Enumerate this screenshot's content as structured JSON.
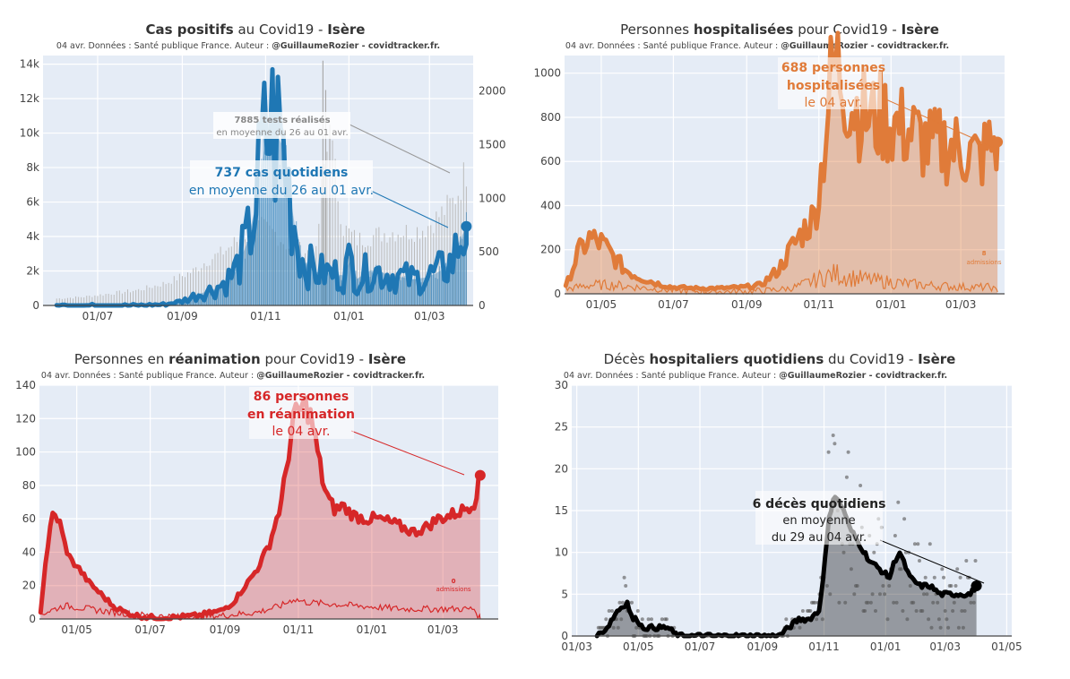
{
  "page": {
    "background": "#ffffff",
    "plot_background": "#e5ecf6"
  },
  "charts": [
    {
      "id": "cases",
      "title_pre": "Cas positifs",
      "title_mid": " au Covid19 - ",
      "title_post": "Isère",
      "subtitle": "04 avr. Données : Santé publique France. Auteur : ",
      "subtitle_author": "@GuillaumeRozier - covidtracker.fr.",
      "annotation_main": "737 cas quotidiens",
      "annotation_sub": "en moyenne du 26 au 01 avr.",
      "annotation2_main": "7885 tests réalisés",
      "annotation2_sub": "en moyenne du 26 au 01 avr.",
      "color": "#1f77b4"
    },
    {
      "id": "hosp",
      "title_pre": "Personnes ",
      "title_mid": "hospitalisées",
      "title_post": " pour Covid19 - ",
      "title_end": "Isère",
      "subtitle": "04 avr. Données : Santé publique France. Auteur : ",
      "subtitle_author": "@GuillaumeRozier - covidtracker.fr.",
      "annotation_line1": "688 personnes",
      "annotation_line2": "hospitalisées",
      "annotation_sub": "le 04 avr.",
      "small_note_value": "8",
      "small_note_label": "admissions",
      "color": "#e07b39"
    },
    {
      "id": "rea",
      "title_pre": "Personnes en ",
      "title_mid": "réanimation",
      "title_post": " pour Covid19 - ",
      "title_end": "Isère",
      "subtitle": "04 avr. Données : Santé publique France. Auteur : ",
      "subtitle_author": "@GuillaumeRozier - covidtracker.fr.",
      "annotation_line1": "86 personnes",
      "annotation_line2": "en réanimation",
      "annotation_sub": "le 04 avr.",
      "small_note_value": "0",
      "small_note_label": "admissions",
      "color": "#d62728"
    },
    {
      "id": "deces",
      "title_pre": "Décès ",
      "title_mid": "hospitaliers quotidiens",
      "title_post": " du Covid19 - ",
      "title_end": "Isère",
      "subtitle": "04 avr. Données : Santé publique France. Auteur : ",
      "subtitle_author": "@GuillaumeRozier - covidtracker.fr.",
      "annotation_main": "6 décès quotidiens",
      "annotation_sub1": "en moyenne",
      "annotation_sub2": "du 29 au 04 avr.",
      "color": "#000000"
    }
  ],
  "chart_data": [
    {
      "type": "line",
      "id": "cases",
      "x_ticks": [
        "01/07",
        "01/09",
        "01/11",
        "01/01",
        "01/03"
      ],
      "y_ticks_left": [
        "0",
        "2k",
        "4k",
        "6k",
        "8k",
        "10k",
        "12k",
        "14k"
      ],
      "y_ticks_right": [
        "0",
        "500",
        "1000",
        "1500",
        "2000"
      ],
      "ylim_left": [
        0,
        14500
      ],
      "ylim_right": [
        0,
        2330
      ],
      "x_days_range": [
        -10,
        305
      ],
      "x_tick_days": [
        30,
        92,
        153,
        214,
        273
      ],
      "series": [
        {
          "name": "cas quotidiens (moyenne)",
          "axis": "right",
          "x": [
            0,
            20,
            40,
            60,
            80,
            92,
            105,
            115,
            125,
            132,
            140,
            145,
            150,
            155,
            160,
            165,
            170,
            175,
            180,
            190,
            200,
            210,
            215,
            220,
            230,
            240,
            250,
            260,
            270,
            278,
            285,
            290,
            295,
            300
          ],
          "y": [
            0,
            0,
            0,
            0,
            10,
            40,
            110,
            150,
            230,
            350,
            600,
            900,
            1300,
            1650,
            1620,
            1500,
            1100,
            700,
            420,
            310,
            300,
            280,
            420,
            250,
            330,
            300,
            270,
            245,
            260,
            300,
            360,
            410,
            600,
            737
          ]
        },
        {
          "name": "tests réalisés (moyenne)",
          "axis": "left",
          "x": [
            0,
            20,
            40,
            60,
            80,
            100,
            110,
            120,
            130,
            140,
            150,
            160,
            170,
            180,
            190,
            195,
            200,
            205,
            210,
            220,
            230,
            240,
            250,
            260,
            270,
            280,
            290,
            295,
            300
          ],
          "y": [
            400,
            500,
            700,
            900,
            1300,
            2000,
            2600,
            3000,
            3600,
            4300,
            4500,
            4200,
            3400,
            3200,
            3000,
            7500,
            10000,
            7000,
            4500,
            3800,
            4000,
            4200,
            4300,
            4300,
            4500,
            5200,
            6000,
            6800,
            7885
          ]
        }
      ]
    },
    {
      "type": "area",
      "id": "hosp",
      "x_ticks": [
        "01/05",
        "01/07",
        "01/09",
        "01/11",
        "01/01",
        "01/03"
      ],
      "y_ticks": [
        "0",
        "200",
        "400",
        "600",
        "800",
        "1000"
      ],
      "ylim": [
        0,
        1080
      ],
      "x_days_range": [
        -1,
        371
      ],
      "x_tick_days": [
        30,
        91,
        153,
        214,
        275,
        334
      ],
      "series": [
        {
          "name": "personnes hospitalisées",
          "x": [
            0,
            10,
            20,
            30,
            40,
            50,
            60,
            75,
            90,
            110,
            130,
            150,
            165,
            180,
            190,
            200,
            210,
            215,
            220,
            225,
            230,
            235,
            240,
            250,
            260,
            270,
            280,
            290,
            300,
            310,
            320,
            330,
            340,
            350,
            355,
            360,
            365
          ],
          "y": [
            30,
            180,
            250,
            230,
            170,
            110,
            80,
            50,
            30,
            25,
            25,
            30,
            40,
            110,
            200,
            280,
            350,
            500,
            750,
            1000,
            1030,
            950,
            880,
            820,
            790,
            800,
            760,
            740,
            700,
            660,
            680,
            660,
            640,
            610,
            650,
            680,
            688
          ]
        },
        {
          "name": "admissions",
          "x": [
            0,
            20,
            40,
            60,
            90,
            120,
            150,
            170,
            190,
            200,
            210,
            220,
            230,
            240,
            260,
            280,
            300,
            320,
            340,
            360,
            365
          ],
          "y": [
            20,
            40,
            40,
            30,
            15,
            10,
            10,
            15,
            25,
            40,
            60,
            80,
            90,
            75,
            60,
            50,
            40,
            35,
            30,
            30,
            8
          ]
        }
      ]
    },
    {
      "type": "area",
      "id": "rea",
      "x_ticks": [
        "01/05",
        "01/07",
        "01/09",
        "01/11",
        "01/01",
        "01/03"
      ],
      "y_ticks": [
        "0",
        "20",
        "40",
        "60",
        "80",
        "100",
        "120",
        "140"
      ],
      "ylim": [
        0,
        140
      ],
      "x_days_range": [
        -1,
        380
      ],
      "x_tick_days": [
        30,
        91,
        153,
        214,
        275,
        334
      ],
      "series": [
        {
          "name": "personnes en réanimation",
          "x": [
            0,
            5,
            10,
            15,
            20,
            25,
            30,
            40,
            50,
            60,
            70,
            80,
            90,
            110,
            130,
            150,
            160,
            170,
            180,
            190,
            200,
            205,
            210,
            215,
            220,
            225,
            230,
            235,
            240,
            245,
            250,
            260,
            270,
            280,
            290,
            300,
            310,
            320,
            330,
            340,
            350,
            360,
            365
          ],
          "y": [
            5,
            40,
            62,
            60,
            45,
            35,
            32,
            22,
            15,
            8,
            4,
            2,
            1,
            1,
            2,
            5,
            10,
            20,
            30,
            45,
            70,
            95,
            120,
            125,
            128,
            120,
            100,
            80,
            70,
            65,
            68,
            62,
            60,
            60,
            58,
            55,
            52,
            55,
            60,
            62,
            65,
            70,
            86
          ]
        },
        {
          "name": "admissions",
          "x": [
            0,
            20,
            40,
            60,
            90,
            120,
            150,
            180,
            200,
            210,
            220,
            240,
            260,
            280,
            300,
            320,
            340,
            360,
            365
          ],
          "y": [
            3,
            8,
            6,
            4,
            2,
            1,
            2,
            4,
            8,
            12,
            10,
            9,
            8,
            7,
            6,
            6,
            6,
            6,
            0
          ]
        }
      ]
    },
    {
      "type": "area",
      "id": "deces",
      "x_ticks": [
        "01/03",
        "01/05",
        "01/07",
        "01/09",
        "01/11",
        "01/01",
        "01/03",
        "01/05"
      ],
      "y_ticks": [
        "0",
        "5",
        "10",
        "15",
        "20",
        "25",
        "30"
      ],
      "ylim": [
        0,
        30
      ],
      "x_days_range": [
        -5,
        431
      ],
      "x_tick_days": [
        0,
        61,
        122,
        184,
        245,
        306,
        365,
        426
      ],
      "series": [
        {
          "name": "décès quotidiens (moyenne)",
          "x": [
            20,
            30,
            40,
            50,
            55,
            60,
            65,
            70,
            80,
            90,
            100,
            110,
            130,
            150,
            170,
            190,
            200,
            210,
            220,
            230,
            240,
            245,
            250,
            255,
            260,
            265,
            270,
            275,
            280,
            290,
            300,
            310,
            315,
            320,
            330,
            340,
            350,
            360,
            370,
            380,
            390,
            396
          ],
          "y": [
            0,
            1,
            3,
            4,
            2,
            2,
            1,
            1,
            1,
            1,
            0,
            0,
            0,
            0,
            0,
            0,
            0,
            1,
            2,
            2,
            3,
            8,
            14,
            17,
            16,
            15,
            13,
            12,
            11,
            9,
            8,
            7,
            9,
            10,
            7,
            6,
            6,
            5,
            5,
            5,
            5,
            6
          ]
        }
      ]
    }
  ]
}
